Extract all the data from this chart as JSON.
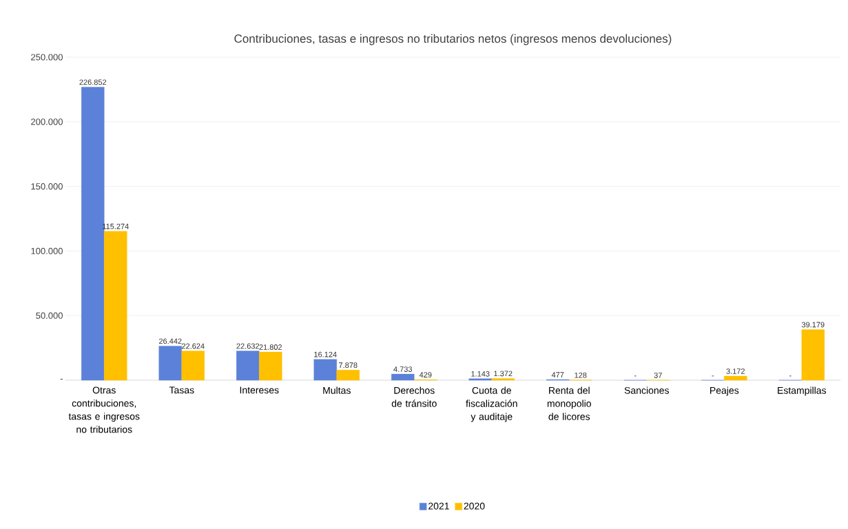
{
  "chart_data": {
    "type": "bar",
    "title": "Contribuciones, tasas e ingresos no tributarios netos (ingresos menos devoluciones)",
    "categories": [
      "Otras contribuciones, tasas e ingresos no tributarios",
      "Tasas",
      "Intereses",
      "Multas",
      "Derechos de tránsito",
      "Cuota de fiscalización y auditaje",
      "Renta del monopolio de licores",
      "Sanciones",
      "Peajes",
      "Estampillas"
    ],
    "series": [
      {
        "name": "2021",
        "color": "#5b82d8",
        "values": [
          226852,
          26442,
          22632,
          16124,
          4733,
          1143,
          477,
          0,
          0,
          0
        ],
        "value_labels": [
          "226.852",
          "26.442",
          "22.632",
          "16.124",
          "4.733",
          "1.143",
          "477",
          "-",
          "-",
          "-"
        ]
      },
      {
        "name": "2020",
        "color": "#ffc000",
        "values": [
          115274,
          22624,
          21802,
          7878,
          429,
          1372,
          128,
          37,
          3172,
          39179
        ],
        "value_labels": [
          "115.274",
          "22.624",
          "21.802",
          "7.878",
          "429",
          "1.372",
          "128",
          "37",
          "3.172",
          "39.179"
        ]
      }
    ],
    "ylim": [
      0,
      250000
    ],
    "yticks": [
      {
        "value": 0,
        "label": "-"
      },
      {
        "value": 50000,
        "label": "50.000"
      },
      {
        "value": 100000,
        "label": "100.000"
      },
      {
        "value": 150000,
        "label": "150.000"
      },
      {
        "value": 200000,
        "label": "200.000"
      },
      {
        "value": 250000,
        "label": "250.000"
      }
    ],
    "grid": "y",
    "legend": "bottom"
  }
}
